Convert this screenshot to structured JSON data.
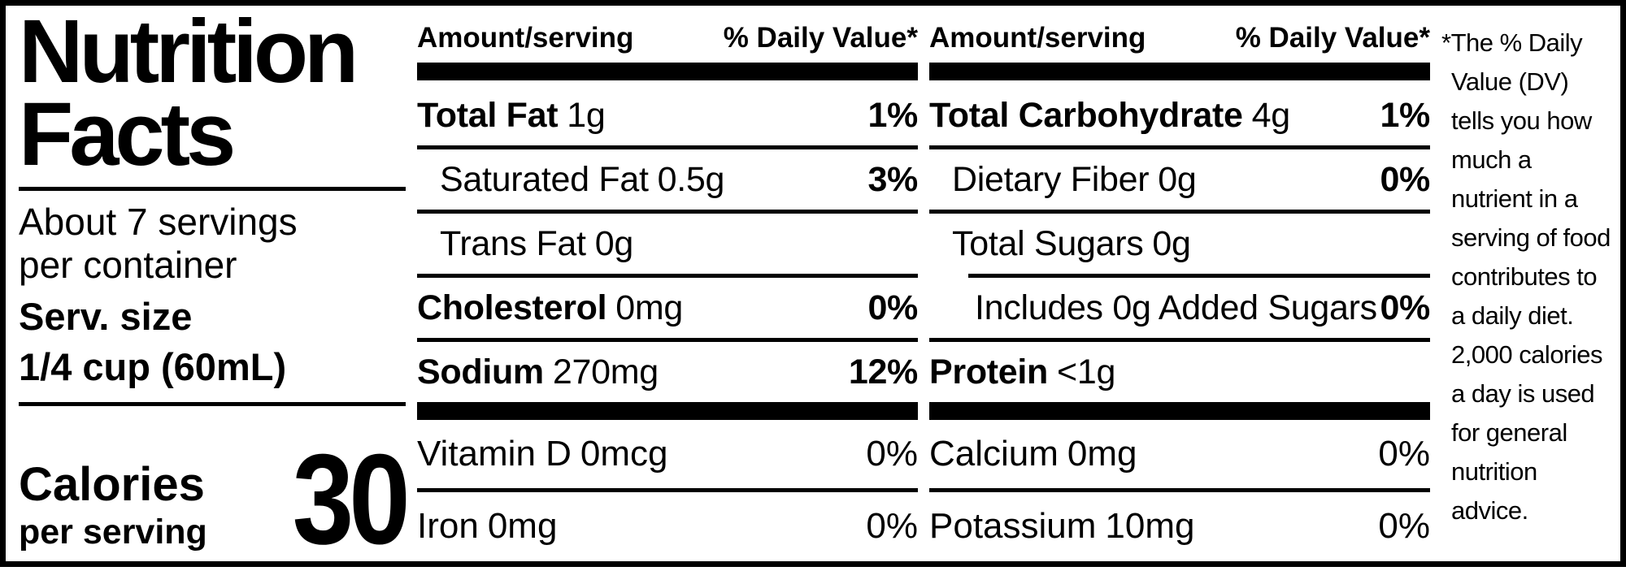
{
  "colors": {
    "ink": "#000000",
    "background": "#ffffff"
  },
  "left_panel": {
    "title_line1": "Nutrition",
    "title_line2": "Facts",
    "servings_line1": "About 7 servings",
    "servings_line2": "per container",
    "serving_size_label": "Serv. size",
    "serving_size_value": "1/4 cup (60mL)",
    "calories_label": "Calories",
    "calories_sublabel": "per serving",
    "calories_value": "30"
  },
  "columns": [
    {
      "header_amount": "Amount/serving",
      "header_dv": "% Daily Value*",
      "rows": [
        {
          "name": "Total Fat",
          "amount": "1g",
          "dv": "1%"
        },
        {
          "name": "Saturated Fat",
          "amount": "0.5g",
          "dv": "3%"
        },
        {
          "name": "Trans Fat",
          "amount": "0g",
          "dv": ""
        },
        {
          "name": "Cholesterol",
          "amount": "0mg",
          "dv": "0%"
        },
        {
          "name": "Sodium",
          "amount": "270mg",
          "dv": "12%"
        }
      ],
      "vitamin_rows": [
        {
          "name": "Vitamin D",
          "amount": "0mcg",
          "dv": "0%"
        },
        {
          "name": "Iron",
          "amount": "0mg",
          "dv": "0%"
        }
      ]
    },
    {
      "header_amount": "Amount/serving",
      "header_dv": "% Daily Value*",
      "rows": [
        {
          "name": "Total Carbohydrate",
          "amount": "4g",
          "dv": "1%"
        },
        {
          "name": "Dietary Fiber",
          "amount": "0g",
          "dv": "0%"
        },
        {
          "name": "Total Sugars",
          "amount": "0g",
          "dv": ""
        },
        {
          "name": "Includes 0g Added Sugars",
          "amount": "",
          "dv": "0%"
        },
        {
          "name": "Protein",
          "amount": "<1g",
          "dv": ""
        }
      ],
      "vitamin_rows": [
        {
          "name": "Calcium",
          "amount": "0mg",
          "dv": "0%"
        },
        {
          "name": "Potassium",
          "amount": "10mg",
          "dv": "0%"
        }
      ]
    }
  ],
  "footnote": {
    "lines": [
      "*The % Daily",
      "Value (DV)",
      "tells you how",
      "much a",
      "nutrient in a",
      "serving of food",
      "contributes to",
      "a daily diet.",
      "2,000 calories",
      "a day is used",
      "for general",
      "nutrition",
      "advice."
    ]
  }
}
